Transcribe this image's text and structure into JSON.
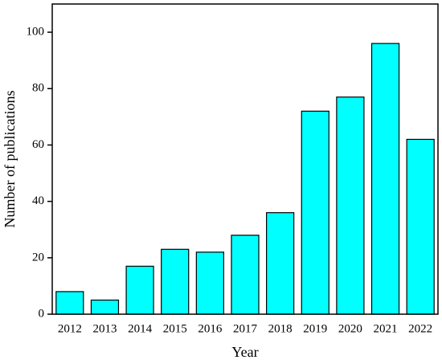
{
  "chart_data": {
    "type": "bar",
    "x_label": "Year",
    "y_label": "Number of publications",
    "categories": [
      "2012",
      "2013",
      "2014",
      "2015",
      "2016",
      "2017",
      "2018",
      "2019",
      "2020",
      "2021",
      "2022"
    ],
    "values": [
      8,
      5,
      17,
      23,
      22,
      28,
      36,
      72,
      77,
      96,
      62
    ],
    "color": "#00ffff",
    "ylim": [
      0,
      110
    ],
    "yticks": [
      0,
      20,
      40,
      60,
      80,
      100
    ],
    "grid": false
  }
}
